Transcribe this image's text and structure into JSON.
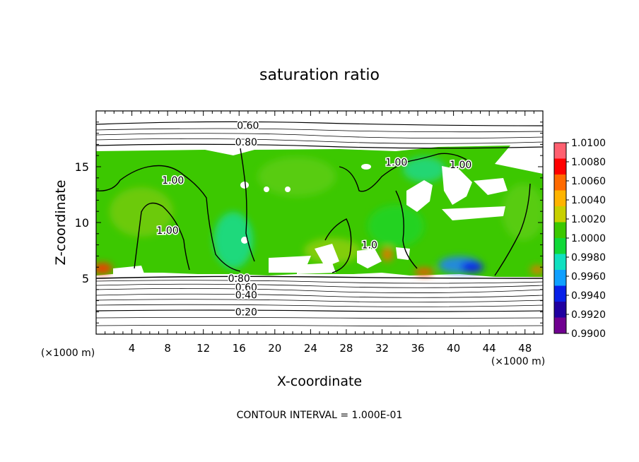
{
  "chart_data": {
    "type": "heatmap",
    "title": "saturation ratio",
    "xlabel": "X-coordinate",
    "ylabel": "Z-coordinate",
    "x_unit": "(×1000 m)",
    "y_unit": "(×1000 m)",
    "xlim": [
      0,
      50
    ],
    "ylim": [
      0,
      20
    ],
    "xticks": [
      4,
      8,
      12,
      16,
      20,
      24,
      28,
      32,
      36,
      40,
      44,
      48
    ],
    "yticks": [
      5,
      10,
      15
    ],
    "contour_interval_text": "CONTOUR INTERVAL = 1.000E-01",
    "contour_labels": [
      {
        "text": "0.60",
        "x": 17.0,
        "y": 18.7
      },
      {
        "text": "0.80",
        "x": 16.8,
        "y": 17.2
      },
      {
        "text": "1.00",
        "x": 8.6,
        "y": 13.8
      },
      {
        "text": "1.00",
        "x": 8.0,
        "y": 9.3
      },
      {
        "text": "1.00",
        "x": 33.6,
        "y": 15.4
      },
      {
        "text": "1.00",
        "x": 40.8,
        "y": 15.2
      },
      {
        "text": "1.0",
        "x": 30.6,
        "y": 8.0
      },
      {
        "text": "0.80",
        "x": 16.0,
        "y": 5.0
      },
      {
        "text": "0.60",
        "x": 16.8,
        "y": 4.2
      },
      {
        "text": "0.40",
        "x": 16.8,
        "y": 3.5
      },
      {
        "text": "0.20",
        "x": 16.8,
        "y": 2.0
      }
    ],
    "colorbar": {
      "min": 0.99,
      "max": 1.01,
      "labels": [
        "1.0100",
        "1.0080",
        "1.0060",
        "1.0040",
        "1.0020",
        "1.0000",
        "0.9980",
        "0.9960",
        "0.9940",
        "0.9920",
        "0.9900"
      ],
      "colors": [
        "#ff6070",
        "#ff0000",
        "#ff6a00",
        "#ffb400",
        "#c8d000",
        "#3cc800",
        "#10d838",
        "#10e0c0",
        "#10a0ff",
        "#0820e8",
        "#2000a0",
        "#700090"
      ]
    }
  }
}
